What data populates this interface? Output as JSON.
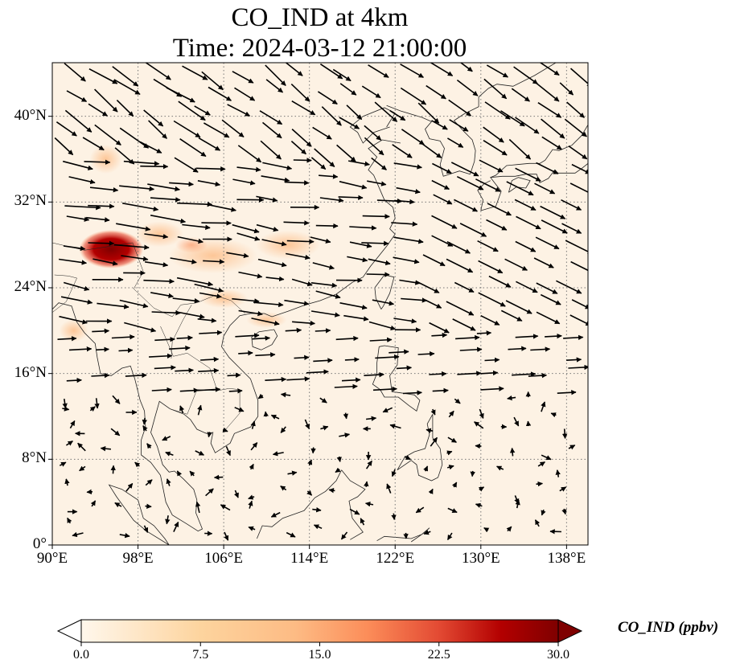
{
  "title": {
    "line1": "CO_IND at 4km",
    "line2": "Time: 2024-03-12 21:00:00"
  },
  "map": {
    "lon_range": [
      90,
      140
    ],
    "lat_range": [
      0,
      45
    ],
    "lon_ticks": [
      "90°E",
      "98°E",
      "106°E",
      "114°E",
      "122°E",
      "130°E",
      "138°E"
    ],
    "lat_ticks": [
      "0°",
      "8°N",
      "16°N",
      "24°N",
      "32°N",
      "40°N"
    ],
    "gridlines": "dotted",
    "field_variable": "CO_IND",
    "wind_vectors": "black arrows"
  },
  "colorbar": {
    "label": "CO_IND (ppbv)",
    "ticks": [
      "0.0",
      "7.5",
      "15.0",
      "22.5",
      "30.0"
    ],
    "min": 0,
    "max": 30,
    "colormap": "OrRd",
    "extend": "both"
  },
  "colors": {
    "low": "#fff7ec",
    "mid": "#fdbb84",
    "high": "#7f0000",
    "ocean": "#fdf2e4"
  }
}
